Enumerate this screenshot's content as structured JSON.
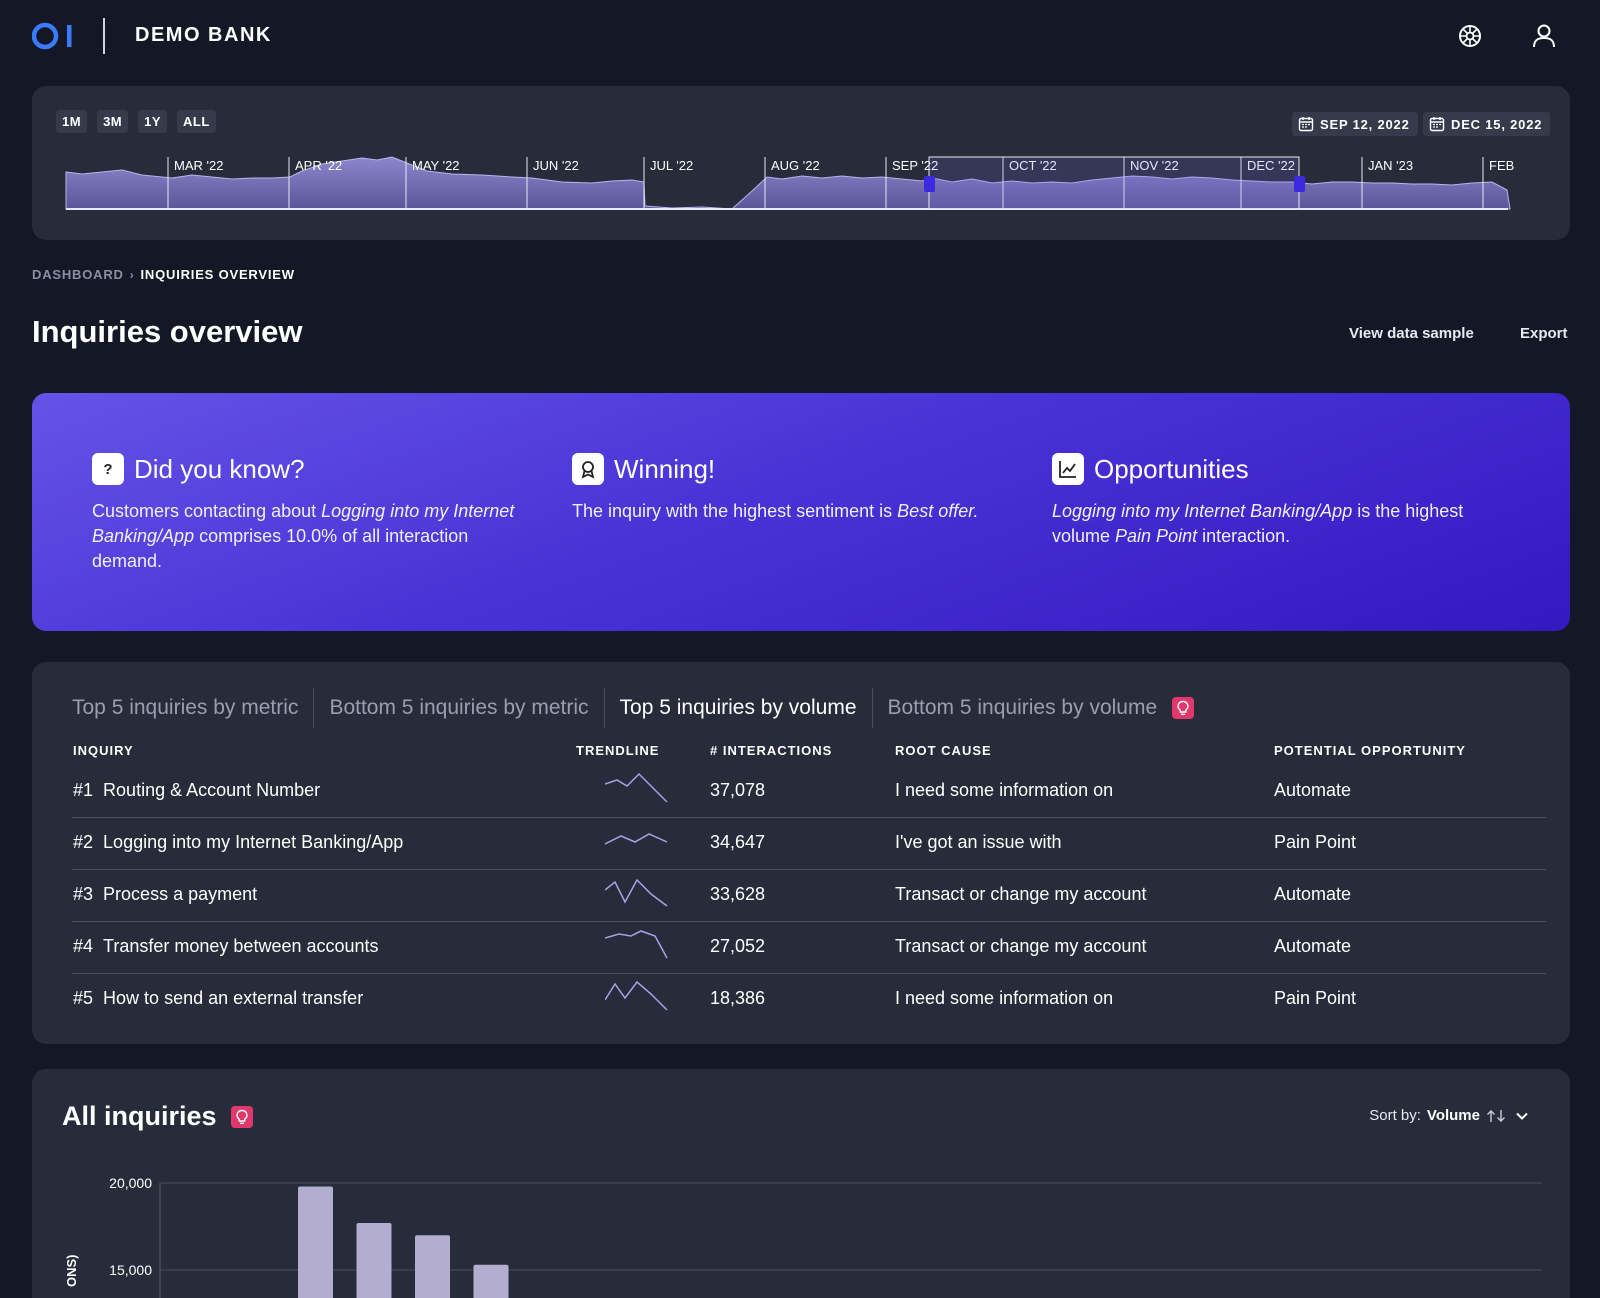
{
  "header": {
    "logo_text": "OI",
    "brand": "DEMO BANK",
    "icons": [
      "globe-icon",
      "user-icon"
    ]
  },
  "timeline": {
    "range_buttons": [
      "1M",
      "3M",
      "1Y",
      "ALL"
    ],
    "start_date": "SEP 12, 2022",
    "end_date": "DEC 15, 2022",
    "months": [
      "MAR '22",
      "APR '22",
      "MAY '22",
      "JUN '22",
      "JUL '22",
      "AUG '22",
      "SEP '22",
      "OCT '22",
      "NOV '22",
      "DEC '22",
      "JAN '23",
      "FEB"
    ]
  },
  "breadcrumb": {
    "parent": "DASHBOARD",
    "current": "INQUIRIES OVERVIEW"
  },
  "page": {
    "title": "Inquiries overview",
    "view_data_sample": "View data sample",
    "export": "Export"
  },
  "insights": [
    {
      "title": "Did you know?",
      "icon": "question-icon",
      "parts": [
        {
          "t": "Customers contacting about ",
          "i": false
        },
        {
          "t": "Logging into my Internet Banking/App",
          "i": true
        },
        {
          "t": " comprises 10.0% of all interaction demand.",
          "i": false
        }
      ]
    },
    {
      "title": "Winning!",
      "icon": "award-icon",
      "parts": [
        {
          "t": "The inquiry with the highest sentiment is ",
          "i": false
        },
        {
          "t": "Best offer.",
          "i": true
        }
      ]
    },
    {
      "title": "Opportunities",
      "icon": "chart-line-icon",
      "parts": [
        {
          "t": "Logging into my Internet Banking/App",
          "i": true
        },
        {
          "t": " is the highest volume ",
          "i": false
        },
        {
          "t": "Pain Point",
          "i": true
        },
        {
          "t": " interaction.",
          "i": false
        }
      ]
    }
  ],
  "top_inquiries": {
    "tabs": [
      "Top 5 inquiries by metric",
      "Bottom 5 inquiries by metric",
      "Top 5 inquiries by volume",
      "Bottom 5 inquiries by volume"
    ],
    "active_tab": 2,
    "columns": [
      "INQUIRY",
      "TRENDLINE",
      "# INTERACTIONS",
      "ROOT CAUSE",
      "POTENTIAL OPPORTUNITY"
    ],
    "rows": [
      {
        "rank": "#1",
        "name": "Routing & Account Number",
        "interactions": "37,078",
        "root_cause": "I need some information on",
        "opportunity": "Automate"
      },
      {
        "rank": "#2",
        "name": "Logging into my Internet Banking/App",
        "interactions": "34,647",
        "root_cause": "I've got an issue with",
        "opportunity": "Pain Point"
      },
      {
        "rank": "#3",
        "name": "Process a payment",
        "interactions": "33,628",
        "root_cause": "Transact or change my account",
        "opportunity": "Automate"
      },
      {
        "rank": "#4",
        "name": "Transfer money between accounts",
        "interactions": "27,052",
        "root_cause": "Transact or change my account",
        "opportunity": "Automate"
      },
      {
        "rank": "#5",
        "name": "How to send an external transfer",
        "interactions": "18,386",
        "root_cause": "I need some information on",
        "opportunity": "Pain Point"
      }
    ]
  },
  "all_inquiries": {
    "title": "All inquiries",
    "sort_label": "Sort by:",
    "sort_value": "Volume"
  },
  "chart_data": {
    "type": "bar",
    "ylabel": "ONS)",
    "y_ticks": [
      "20,000",
      "15,000"
    ],
    "ylim": [
      0,
      20000
    ],
    "values": [
      19800,
      17700,
      17000,
      15300
    ],
    "bar_color": "#b3aed0"
  },
  "colors": {
    "background": "#141826",
    "panel": "#272b3a",
    "accent": "#5b49e0",
    "badge": "#e0386a"
  }
}
